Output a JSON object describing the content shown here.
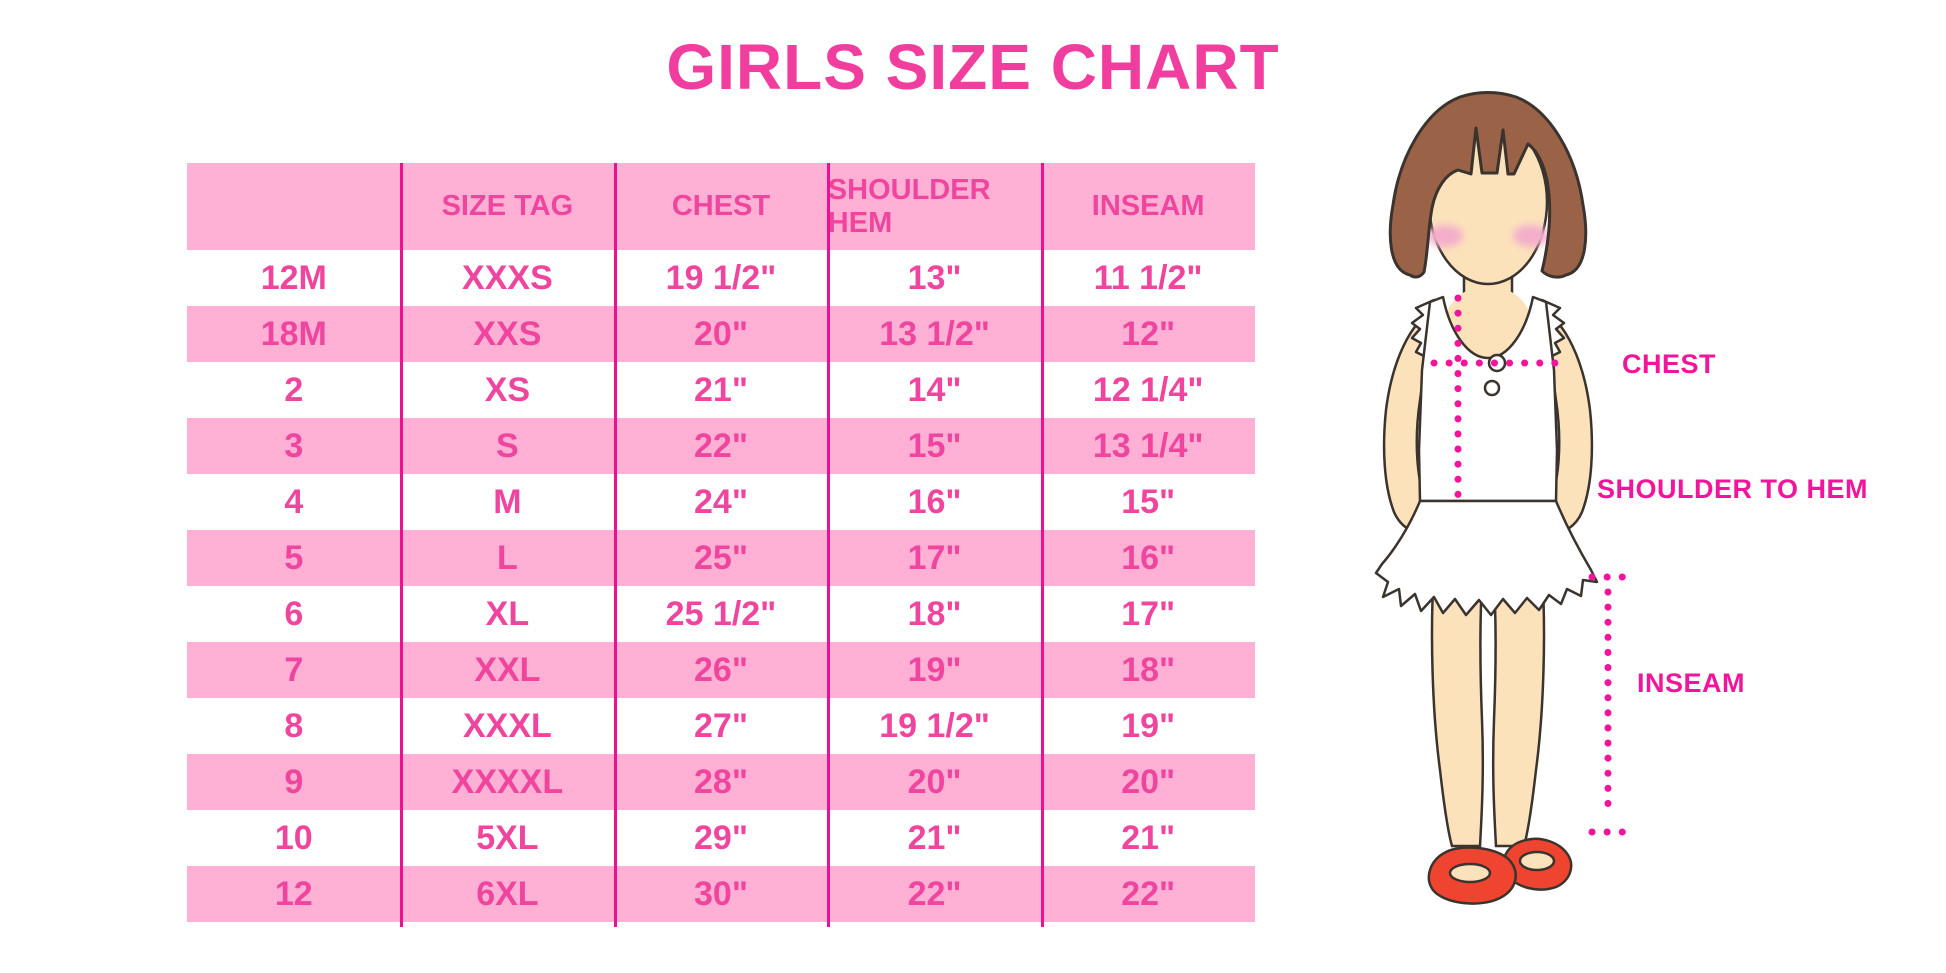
{
  "title": "GIRLS SIZE CHART",
  "colors": {
    "title_pink": "#F13D9D",
    "table_row_pink": "#FFB0D4",
    "table_text_pink": "#F0459E",
    "divider_magenta": "#EC1190",
    "measure_line_magenta": "#F2159B",
    "hair_brown": "#9A6246",
    "skin": "#FCE2BB",
    "shoe_red": "#EF4430"
  },
  "chart_data": {
    "type": "table",
    "title": "GIRLS SIZE CHART",
    "columns": [
      "",
      "SIZE TAG",
      "CHEST",
      "SHOULDER HEM",
      "INSEAM"
    ],
    "rows": [
      [
        "12M",
        "XXXS",
        "19 1/2\"",
        "13\"",
        "11 1/2\""
      ],
      [
        "18M",
        "XXS",
        "20\"",
        "13 1/2\"",
        "12\""
      ],
      [
        "2",
        "XS",
        "21\"",
        "14\"",
        "12 1/4\""
      ],
      [
        "3",
        "S",
        "22\"",
        "15\"",
        "13 1/4\""
      ],
      [
        "4",
        "M",
        "24\"",
        "16\"",
        "15\""
      ],
      [
        "5",
        "L",
        "25\"",
        "17\"",
        "16\""
      ],
      [
        "6",
        "XL",
        "25 1/2\"",
        "18\"",
        "17\""
      ],
      [
        "7",
        "XXL",
        "26\"",
        "19\"",
        "18\""
      ],
      [
        "8",
        "XXXL",
        "27\"",
        "19 1/2\"",
        "19\""
      ],
      [
        "9",
        "XXXXL",
        "28\"",
        "20\"",
        "20\""
      ],
      [
        "10",
        "5XL",
        "29\"",
        "21\"",
        "21\""
      ],
      [
        "12",
        "6XL",
        "30\"",
        "22\"",
        "22\""
      ]
    ],
    "row_striping": "white / pink alternating, header pink",
    "legend_position": "none",
    "grid": "vertical magenta dividers only"
  },
  "diagram": {
    "chest_label": "CHEST",
    "shoulder_label": "SHOULDER TO HEM",
    "inseam_label": "INSEAM"
  }
}
